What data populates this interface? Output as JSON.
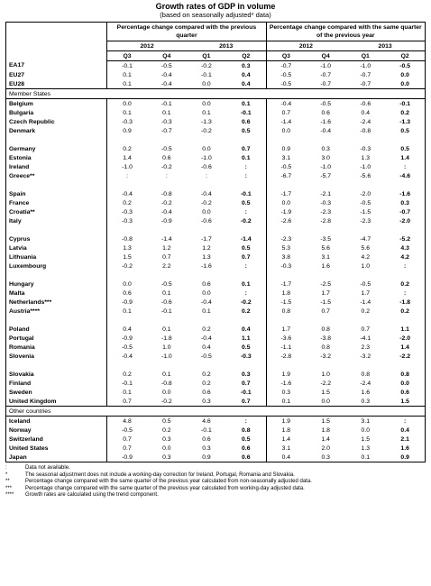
{
  "header": {
    "title": "Growth rates of GDP in volume",
    "subtitle": "(based on seasonally adjusted* data)"
  },
  "table": {
    "groups": [
      "Percentage change compared with the previous quarter",
      "Percentage change compared with the same quarter of the previous year"
    ],
    "years": [
      "2012",
      "2013",
      "2012",
      "2013"
    ],
    "quarters": [
      "Q3",
      "Q4",
      "Q1",
      "Q2",
      "Q3",
      "Q4",
      "Q1",
      "Q2"
    ],
    "sections": [
      {
        "blocks": [
          [
            {
              "name": "EA17",
              "values": [
                "-0.1",
                "-0.5",
                "-0.2",
                "0.3",
                "-0.7",
                "-1.0",
                "-1.0",
                "-0.5"
              ]
            },
            {
              "name": "EU27",
              "values": [
                "0.1",
                "-0.4",
                "-0.1",
                "0.4",
                "-0.5",
                "-0.7",
                "-0.7",
                "0.0"
              ]
            },
            {
              "name": "EU28",
              "values": [
                "0.1",
                "-0.4",
                "0.0",
                "0.4",
                "-0.5",
                "-0.7",
                "-0.7",
                "0.0"
              ]
            }
          ]
        ]
      },
      {
        "label": "Member States",
        "blocks": [
          [
            {
              "name": "Belgium",
              "values": [
                "0.0",
                "-0.1",
                "0.0",
                "0.1",
                "-0.4",
                "-0.5",
                "-0.6",
                "-0.1"
              ]
            },
            {
              "name": "Bulgaria",
              "values": [
                "0.1",
                "0.1",
                "0.1",
                "-0.1",
                "0.7",
                "0.6",
                "0.4",
                "0.2"
              ]
            },
            {
              "name": "Czech Republic",
              "values": [
                "-0.3",
                "-0.3",
                "-1.3",
                "0.6",
                "-1.4",
                "-1.6",
                "-2.4",
                "-1.3"
              ]
            },
            {
              "name": "Denmark",
              "values": [
                "0.9",
                "-0.7",
                "-0.2",
                "0.5",
                "0.0",
                "-0.4",
                "-0.8",
                "0.5"
              ]
            }
          ],
          [
            {
              "name": "Germany",
              "values": [
                "0.2",
                "-0.5",
                "0.0",
                "0.7",
                "0.9",
                "0.3",
                "-0.3",
                "0.5"
              ]
            },
            {
              "name": "Estonia",
              "values": [
                "1.4",
                "0.6",
                "-1.0",
                "0.1",
                "3.1",
                "3.0",
                "1.3",
                "1.4"
              ]
            },
            {
              "name": "Ireland",
              "values": [
                "-1.0",
                "-0.2",
                "-0.6",
                ":",
                "-0.5",
                "-1.0",
                "-1.0",
                ":"
              ]
            },
            {
              "name": "Greece**",
              "values": [
                ":",
                ":",
                ":",
                ":",
                "-6.7",
                "-5.7",
                "-5.6",
                "-4.6"
              ]
            }
          ],
          [
            {
              "name": "Spain",
              "values": [
                "-0.4",
                "-0.8",
                "-0.4",
                "-0.1",
                "-1.7",
                "-2.1",
                "-2.0",
                "-1.6"
              ]
            },
            {
              "name": "France",
              "values": [
                "0.2",
                "-0.2",
                "-0.2",
                "0.5",
                "0.0",
                "-0.3",
                "-0.5",
                "0.3"
              ]
            },
            {
              "name": "Croatia**",
              "values": [
                "-0.3",
                "-0.4",
                "0.0",
                ":",
                "-1.9",
                "-2.3",
                "-1.5",
                "-0.7"
              ]
            },
            {
              "name": "Italy",
              "values": [
                "-0.3",
                "-0.9",
                "-0.6",
                "-0.2",
                "-2.6",
                "-2.8",
                "-2.3",
                "-2.0"
              ]
            }
          ],
          [
            {
              "name": "Cyprus",
              "values": [
                "-0.8",
                "-1.4",
                "-1.7",
                "-1.4",
                "-2.3",
                "-3.5",
                "-4.7",
                "-5.2"
              ]
            },
            {
              "name": "Latvia",
              "values": [
                "1.3",
                "1.2",
                "1.2",
                "0.5",
                "5.3",
                "5.6",
                "5.6",
                "4.3"
              ]
            },
            {
              "name": "Lithuania",
              "values": [
                "1.5",
                "0.7",
                "1.3",
                "0.7",
                "3.8",
                "3.1",
                "4.2",
                "4.2"
              ]
            },
            {
              "name": "Luxembourg",
              "values": [
                "-0.2",
                "2.2",
                "-1.6",
                ":",
                "-0.3",
                "1.6",
                "1.0",
                ":"
              ]
            }
          ],
          [
            {
              "name": "Hungary",
              "values": [
                "0.0",
                "-0.5",
                "0.6",
                "0.1",
                "-1.7",
                "-2.5",
                "-0.5",
                "0.2"
              ]
            },
            {
              "name": "Malta",
              "values": [
                "0.6",
                "0.1",
                "0.0",
                ":",
                "1.8",
                "1.7",
                "1.7",
                ":"
              ]
            },
            {
              "name": "Netherlands***",
              "values": [
                "-0.9",
                "-0.6",
                "-0.4",
                "-0.2",
                "-1.5",
                "-1.5",
                "-1.4",
                "-1.8"
              ]
            },
            {
              "name": "Austria****",
              "values": [
                "0.1",
                "-0.1",
                "0.1",
                "0.2",
                "0.8",
                "0.7",
                "0.2",
                "0.2"
              ]
            }
          ],
          [
            {
              "name": "Poland",
              "values": [
                "0.4",
                "0.1",
                "0.2",
                "0.4",
                "1.7",
                "0.8",
                "0.7",
                "1.1"
              ]
            },
            {
              "name": "Portugal",
              "values": [
                "-0.9",
                "-1.8",
                "-0.4",
                "1.1",
                "-3.6",
                "-3.8",
                "-4.1",
                "-2.0"
              ]
            },
            {
              "name": "Romania",
              "values": [
                "-0.5",
                "1.0",
                "0.4",
                "0.5",
                "-1.1",
                "0.8",
                "2.3",
                "1.4"
              ]
            },
            {
              "name": "Slovenia",
              "values": [
                "-0.4",
                "-1.0",
                "-0.5",
                "-0.3",
                "-2.8",
                "-3.2",
                "-3.2",
                "-2.2"
              ]
            }
          ],
          [
            {
              "name": "Slovakia",
              "values": [
                "0.2",
                "0.1",
                "0.2",
                "0.3",
                "1.9",
                "1.0",
                "0.8",
                "0.8"
              ]
            },
            {
              "name": "Finland",
              "values": [
                "-0.1",
                "-0.8",
                "0.2",
                "0.7",
                "-1.6",
                "-2.2",
                "-2.4",
                "0.0"
              ]
            },
            {
              "name": "Sweden",
              "values": [
                "0.1",
                "0.0",
                "0.6",
                "-0.1",
                "0.3",
                "1.5",
                "1.6",
                "0.6"
              ]
            },
            {
              "name": "United Kingdom",
              "values": [
                "0.7",
                "-0.2",
                "0.3",
                "0.7",
                "0.1",
                "0.0",
                "0.3",
                "1.5"
              ]
            }
          ]
        ]
      },
      {
        "label": "Other countries",
        "blocks": [
          [
            {
              "name": "Iceland",
              "values": [
                "4.8",
                "0.5",
                "4.6",
                ":",
                "1.9",
                "1.5",
                "3.1",
                ":"
              ]
            },
            {
              "name": "Norway",
              "values": [
                "-0.5",
                "0.2",
                "-0.1",
                "0.8",
                "1.8",
                "1.8",
                "0.0",
                "0.4"
              ]
            },
            {
              "name": "Switzerland",
              "values": [
                "0.7",
                "0.3",
                "0.6",
                "0.5",
                "1.4",
                "1.4",
                "1.5",
                "2.1"
              ]
            },
            {
              "name": "United States",
              "values": [
                "0.7",
                "0.0",
                "0.3",
                "0.6",
                "3.1",
                "2.0",
                "1.3",
                "1.6"
              ]
            },
            {
              "name": "Japan",
              "values": [
                "-0.9",
                "0.3",
                "0.9",
                "0.6",
                "0.4",
                "0.3",
                "0.1",
                "0.9"
              ]
            }
          ]
        ]
      }
    ]
  },
  "footnotes": [
    {
      "symbol": ":",
      "text": "Data not available."
    },
    {
      "symbol": "*",
      "text": "The seasonal adjustment does not include a working-day correction for Ireland, Portugal, Romania and Slovakia."
    },
    {
      "symbol": "**",
      "text": "Percentage change compared with the same quarter of the previous year calculated from non-seasonally adjusted data."
    },
    {
      "symbol": "***",
      "text": "Percentage change compared with the same quarter of the previous year calculated from working-day adjusted data."
    },
    {
      "symbol": "****",
      "text": "Growth rates are calculated using the trend component."
    }
  ]
}
